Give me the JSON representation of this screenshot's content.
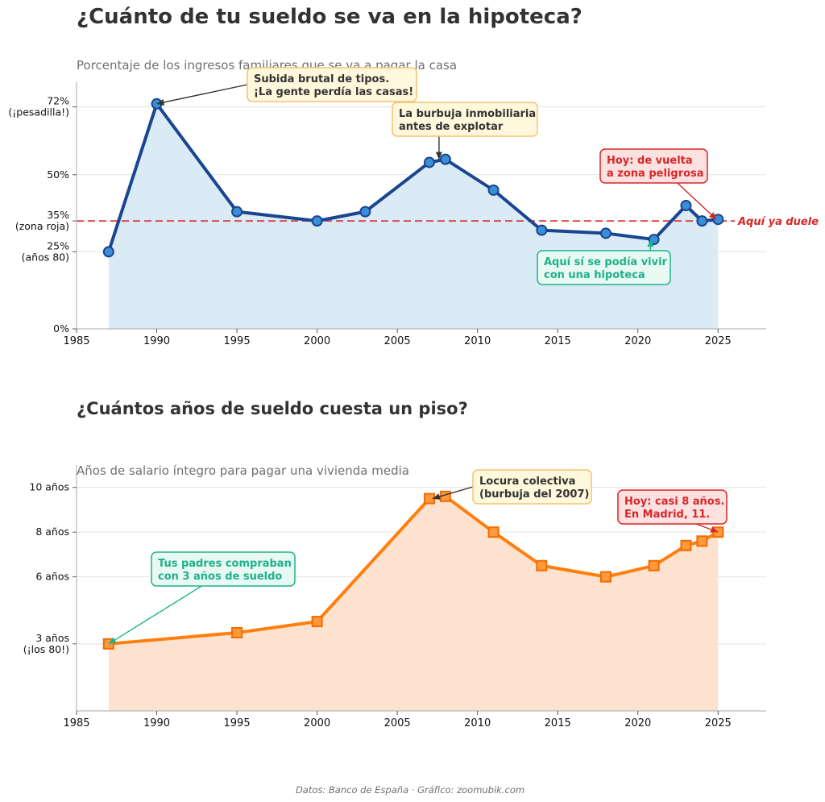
{
  "chart_data": [
    {
      "type": "line",
      "title": "¿Cuánto de tu sueldo se va en la hipoteca?",
      "subtitle": "Porcentaje de los ingresos familiares que se va a pagar la casa",
      "x": [
        1987,
        1990,
        1995,
        2000,
        2003,
        2007,
        2008,
        2011,
        2014,
        2018,
        2021,
        2023,
        2024,
        2025
      ],
      "values": [
        25,
        73,
        38,
        35,
        38,
        54,
        55,
        45,
        32,
        31,
        29,
        40,
        35,
        35.5
      ],
      "xlim": [
        1985,
        2028
      ],
      "ylim": [
        0,
        80
      ],
      "xticks": [
        "1985",
        "1990",
        "1995",
        "2000",
        "2005",
        "2010",
        "2015",
        "2020",
        "2025"
      ],
      "yticks": [
        {
          "value": 0,
          "lines": [
            "0%"
          ]
        },
        {
          "value": 25,
          "lines": [
            "25%",
            "(años 80)"
          ]
        },
        {
          "value": 35,
          "lines": [
            "35%",
            "(zona roja)"
          ]
        },
        {
          "value": 50,
          "lines": [
            "50%"
          ]
        },
        {
          "value": 72,
          "lines": [
            "72%",
            "(¡pesadilla!)"
          ]
        }
      ],
      "threshold": {
        "value": 35,
        "label": "Aquí ya duele"
      },
      "grid": true,
      "line_color": "#1a4590",
      "marker_color": "#3a8fd6",
      "fill_color": "#d8eaf6",
      "annotations": [
        {
          "lines": [
            "Subida brutal de tipos.",
            "¡La gente perdía las casas!"
          ],
          "target": [
            1990,
            73
          ],
          "style": "yellow"
        },
        {
          "lines": [
            "La burbuja inmobiliaria",
            "antes de explotar"
          ],
          "target": [
            2007.6,
            55
          ],
          "style": "yellow"
        },
        {
          "lines": [
            "Hoy: de vuelta",
            "a zona peligrosa"
          ],
          "target": [
            2024.9,
            35.5
          ],
          "style": "red"
        },
        {
          "lines": [
            "Aquí sí se podía vivir",
            "con una hipoteca"
          ],
          "target": [
            2020.8,
            29
          ],
          "style": "green"
        }
      ]
    },
    {
      "type": "line",
      "title": "¿Cuántos años de sueldo cuesta un piso?",
      "subtitle": "Años de salario íntegro para pagar una vivienda media",
      "x": [
        1987,
        1995,
        2000,
        2007,
        2008,
        2011,
        2014,
        2018,
        2021,
        2023,
        2024,
        2025
      ],
      "values": [
        3,
        3.5,
        4,
        9.5,
        9.6,
        8,
        6.5,
        6,
        6.5,
        7.4,
        7.6,
        8
      ],
      "xlim": [
        1985,
        2028
      ],
      "ylim": [
        0,
        11
      ],
      "xticks": [
        "1985",
        "1990",
        "1995",
        "2000",
        "2005",
        "2010",
        "2015",
        "2020",
        "2025"
      ],
      "yticks": [
        {
          "value": 3,
          "lines": [
            "3 años",
            "(¡los 80!)"
          ]
        },
        {
          "value": 6,
          "lines": [
            "6 años"
          ]
        },
        {
          "value": 8,
          "lines": [
            "8 años"
          ]
        },
        {
          "value": 10,
          "lines": [
            "10 años"
          ]
        }
      ],
      "grid": true,
      "line_color": "#ff7f0e",
      "marker_color": "#ff9a3c",
      "fill_color": "#fde0cc",
      "annotations": [
        {
          "lines": [
            "Locura colectiva",
            "(burbuja del 2007)"
          ],
          "target": [
            2007.2,
            9.5
          ],
          "style": "yellow"
        },
        {
          "lines": [
            "Hoy: casi 8 años.",
            "En Madrid, 11."
          ],
          "target": [
            2025,
            8
          ],
          "style": "red"
        },
        {
          "lines": [
            "Tus padres compraban",
            "con 3 años de sueldo"
          ],
          "target": [
            1987,
            3
          ],
          "style": "green"
        }
      ]
    }
  ],
  "source": "Datos: Banco de España  ·  Gráfico: zoomubik.com",
  "colors": {
    "yellow_bg": "#fff8dc",
    "yellow_border": "#f5c270",
    "yellow_text": "#333333",
    "red_bg": "#fde0e0",
    "red_border": "#d62728",
    "red_text": "#d62728",
    "green_bg": "#e8f8f2",
    "green_border": "#1db28c",
    "green_text": "#1db28c"
  }
}
